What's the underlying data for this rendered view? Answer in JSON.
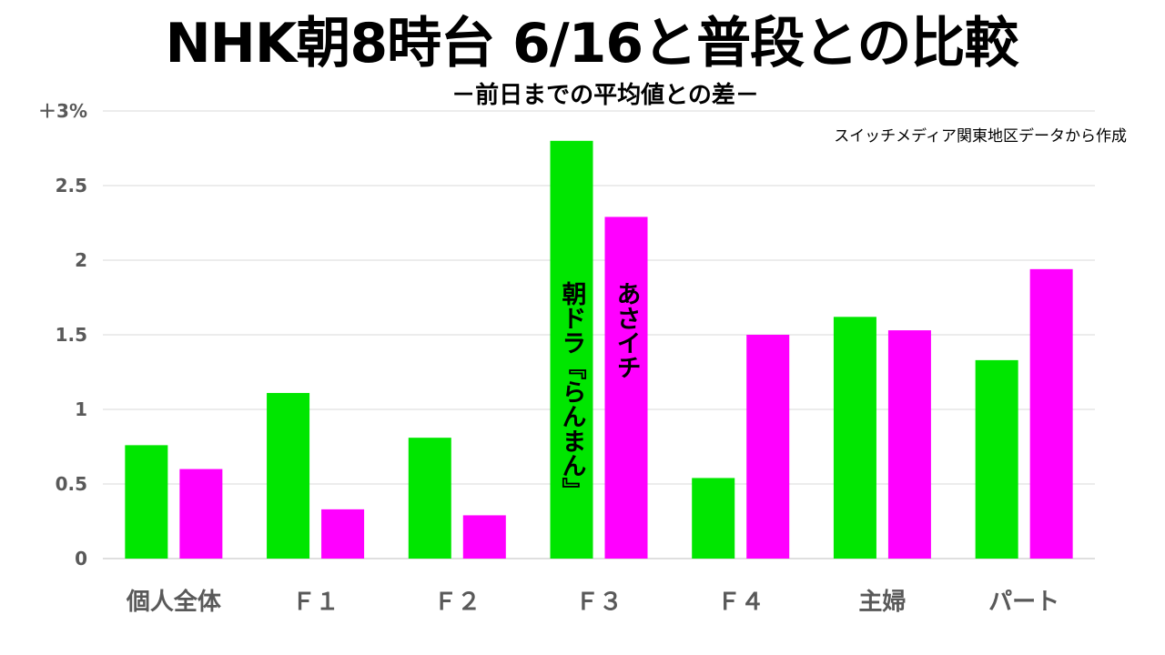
{
  "title": "NHK朝8時台 6/16と普段との比較",
  "subtitle": "－前日までの平均値との差－",
  "source_note": "スイッチメディア関東地区データから作成",
  "chart_data": {
    "type": "bar",
    "categories": [
      "個人全体",
      "Ｆ１",
      "Ｆ２",
      "Ｆ３",
      "Ｆ４",
      "主婦",
      "パート"
    ],
    "series": [
      {
        "name": "朝ドラ『らんまん』",
        "color": "#00e600",
        "values": [
          0.76,
          1.11,
          0.81,
          2.8,
          0.54,
          1.62,
          1.33
        ]
      },
      {
        "name": "あさイチ",
        "color": "#ff00ff",
        "values": [
          0.6,
          0.33,
          0.29,
          2.29,
          1.5,
          1.53,
          1.94
        ]
      }
    ],
    "ylim": [
      0,
      3
    ],
    "yticks": [
      0,
      0.5,
      1,
      1.5,
      2,
      2.5,
      3
    ],
    "ytick_labels": [
      "0",
      "0.5",
      "1",
      "1.5",
      "2",
      "2.5",
      "＋3%"
    ],
    "grid": true,
    "legend": "series names shown vertically inside the Ｆ３ bars"
  }
}
